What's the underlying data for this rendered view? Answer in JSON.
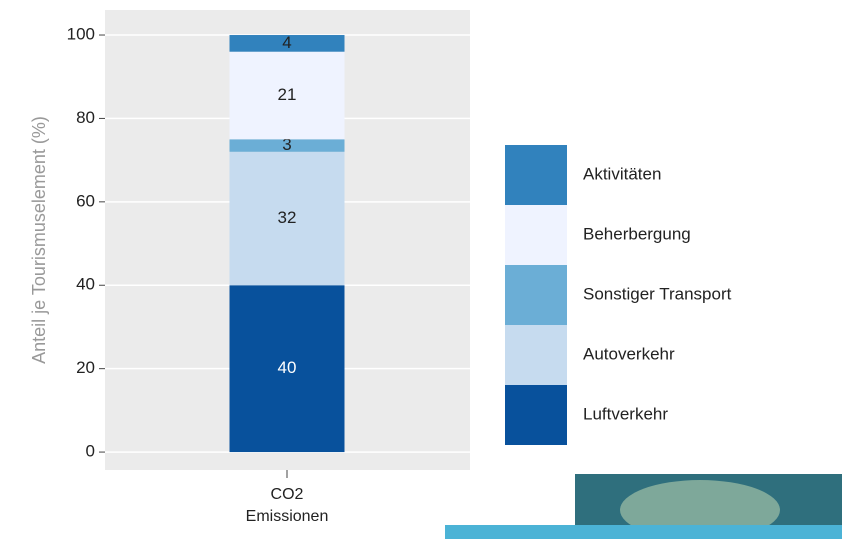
{
  "chart_data": {
    "type": "stacked-bar",
    "y_label": "Anteil je Tourismuselement (%)",
    "categories": [
      "CO2\nEmissionen"
    ],
    "series": [
      {
        "name": "Luftverkehr",
        "color": "#08519c",
        "values": [
          40
        ]
      },
      {
        "name": "Autoverkehr",
        "color": "#c6dbef",
        "values": [
          32
        ]
      },
      {
        "name": "Sonstiger Transport",
        "color": "#6baed6",
        "values": [
          3
        ]
      },
      {
        "name": "Beherbergung",
        "color": "#eff3ff",
        "values": [
          21
        ]
      },
      {
        "name": "Aktivitäten",
        "color": "#3182bd",
        "values": [
          4
        ]
      }
    ],
    "ylim": [
      -4.3,
      106
    ],
    "yticks": [
      0,
      20,
      40,
      60,
      80,
      100
    ],
    "grid": true
  }
}
